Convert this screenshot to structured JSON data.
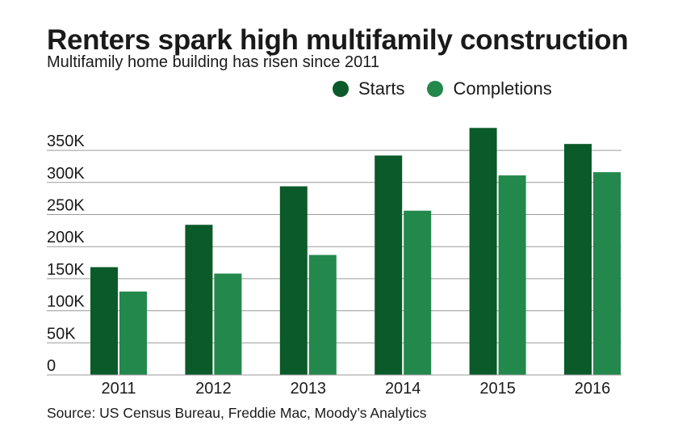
{
  "title": "Renters spark high multifamily construction",
  "subtitle": "Multifamily home building has risen since 2011",
  "source": "Source: US Census Bureau, Freddie Mac, Moody’s Analytics",
  "colors": {
    "starts": "#0b5a2a",
    "completions": "#23884b",
    "grid": "#9a9a9a",
    "text": "#1a1a1a"
  },
  "chart_data": {
    "type": "bar",
    "categories": [
      "2011",
      "2012",
      "2013",
      "2014",
      "2015",
      "2016"
    ],
    "series": [
      {
        "name": "Starts",
        "values": [
          168000,
          234000,
          294000,
          342000,
          385000,
          360000
        ]
      },
      {
        "name": "Completions",
        "values": [
          130000,
          158000,
          187000,
          256000,
          311000,
          316000
        ]
      }
    ],
    "y_ticks": [
      {
        "value": 0,
        "label": "0"
      },
      {
        "value": 50000,
        "label": "50K"
      },
      {
        "value": 100000,
        "label": "100K"
      },
      {
        "value": 150000,
        "label": "150K"
      },
      {
        "value": 200000,
        "label": "200K"
      },
      {
        "value": 250000,
        "label": "250K"
      },
      {
        "value": 300000,
        "label": "300K"
      },
      {
        "value": 350000,
        "label": "350K"
      }
    ],
    "ylim": [
      0,
      390000
    ],
    "grid": true,
    "legend_position": "top-right"
  }
}
